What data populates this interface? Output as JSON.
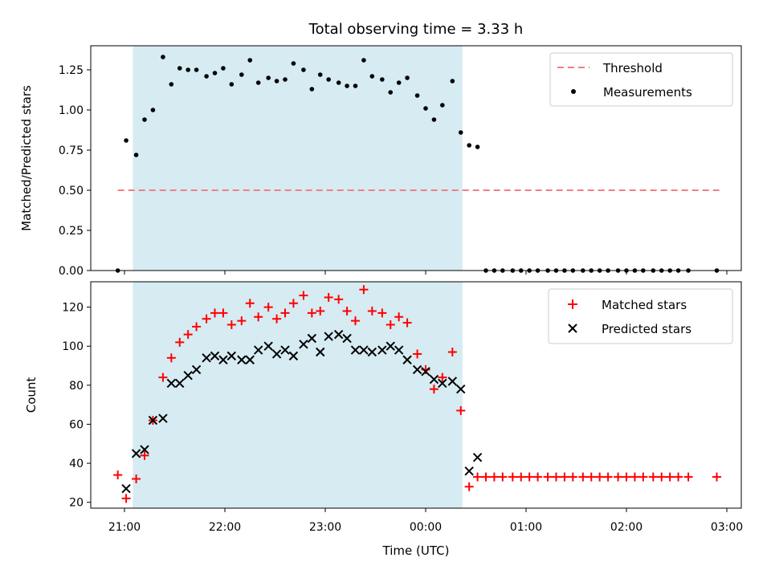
{
  "chart_data": [
    {
      "type": "scatter",
      "title": "Total observing time = 3.33 h",
      "xlabel": "",
      "ylabel": "Matched/Predicted stars",
      "x_unit": "time of night (UTC), decimal hours since 21:00",
      "ylim": [
        0,
        1.4
      ],
      "yticks": [
        0.0,
        0.25,
        0.5,
        0.75,
        1.0,
        1.25
      ],
      "ytick_labels": [
        "0.00",
        "0.25",
        "0.50",
        "0.75",
        "1.00",
        "1.25"
      ],
      "shaded_interval": {
        "start": "21:05",
        "end": "00:22",
        "color": "#add8e6"
      },
      "legend_position": "top-right",
      "threshold": {
        "name": "Threshold",
        "value": 0.5,
        "x_start": "20:56",
        "x_end": "02:56",
        "color": "#f08080",
        "style": "dashed"
      },
      "series": [
        {
          "name": "Measurements",
          "marker": "dot",
          "color": "#000000",
          "points": [
            [
              "20:56",
              0.0
            ],
            [
              "21:01",
              0.81
            ],
            [
              "21:07",
              0.72
            ],
            [
              "21:12",
              0.94
            ],
            [
              "21:17",
              1.0
            ],
            [
              "21:23",
              1.33
            ],
            [
              "21:28",
              1.16
            ],
            [
              "21:33",
              1.26
            ],
            [
              "21:38",
              1.25
            ],
            [
              "21:43",
              1.25
            ],
            [
              "21:49",
              1.21
            ],
            [
              "21:54",
              1.23
            ],
            [
              "21:59",
              1.26
            ],
            [
              "22:04",
              1.16
            ],
            [
              "22:10",
              1.22
            ],
            [
              "22:15",
              1.31
            ],
            [
              "22:20",
              1.17
            ],
            [
              "22:26",
              1.2
            ],
            [
              "22:31",
              1.18
            ],
            [
              "22:36",
              1.19
            ],
            [
              "22:41",
              1.29
            ],
            [
              "22:47",
              1.25
            ],
            [
              "22:52",
              1.13
            ],
            [
              "22:57",
              1.22
            ],
            [
              "23:02",
              1.19
            ],
            [
              "23:08",
              1.17
            ],
            [
              "23:13",
              1.15
            ],
            [
              "23:18",
              1.15
            ],
            [
              "23:23",
              1.31
            ],
            [
              "23:28",
              1.21
            ],
            [
              "23:34",
              1.19
            ],
            [
              "23:39",
              1.11
            ],
            [
              "23:44",
              1.17
            ],
            [
              "23:49",
              1.2
            ],
            [
              "23:55",
              1.09
            ],
            [
              "00:00",
              1.01
            ],
            [
              "00:05",
              0.94
            ],
            [
              "00:10",
              1.03
            ],
            [
              "00:16",
              1.18
            ],
            [
              "00:21",
              0.86
            ],
            [
              "00:26",
              0.78
            ],
            [
              "00:31",
              0.77
            ],
            [
              "00:36",
              0.0
            ],
            [
              "00:41",
              0.0
            ],
            [
              "00:46",
              0.0
            ],
            [
              "00:52",
              0.0
            ],
            [
              "00:57",
              0.0
            ],
            [
              "01:02",
              0.0
            ],
            [
              "01:07",
              0.0
            ],
            [
              "01:13",
              0.0
            ],
            [
              "01:18",
              0.0
            ],
            [
              "01:23",
              0.0
            ],
            [
              "01:28",
              0.0
            ],
            [
              "01:34",
              0.0
            ],
            [
              "01:39",
              0.0
            ],
            [
              "01:44",
              0.0
            ],
            [
              "01:49",
              0.0
            ],
            [
              "01:55",
              0.0
            ],
            [
              "02:00",
              0.0
            ],
            [
              "02:05",
              0.0
            ],
            [
              "02:10",
              0.0
            ],
            [
              "02:16",
              0.0
            ],
            [
              "02:21",
              0.0
            ],
            [
              "02:26",
              0.0
            ],
            [
              "02:31",
              0.0
            ],
            [
              "02:37",
              0.0
            ],
            [
              "02:54",
              0.0
            ]
          ]
        }
      ]
    },
    {
      "type": "scatter",
      "title": "",
      "xlabel": "Time (UTC)",
      "ylabel": "Count",
      "ylim": [
        17,
        133
      ],
      "yticks": [
        20,
        40,
        60,
        80,
        100,
        120
      ],
      "xticks": [
        "21:00",
        "22:00",
        "23:00",
        "00:00",
        "01:00",
        "02:00",
        "03:00"
      ],
      "shaded_interval": {
        "start": "21:05",
        "end": "00:22",
        "color": "#add8e6"
      },
      "legend_position": "top-right",
      "series": [
        {
          "name": "Matched stars",
          "marker": "plus",
          "color": "#ff0000",
          "points": [
            [
              "20:56",
              34
            ],
            [
              "21:01",
              22
            ],
            [
              "21:07",
              32
            ],
            [
              "21:12",
              44
            ],
            [
              "21:17",
              62
            ],
            [
              "21:23",
              84
            ],
            [
              "21:28",
              94
            ],
            [
              "21:33",
              102
            ],
            [
              "21:38",
              106
            ],
            [
              "21:43",
              110
            ],
            [
              "21:49",
              114
            ],
            [
              "21:54",
              117
            ],
            [
              "21:59",
              117
            ],
            [
              "22:04",
              111
            ],
            [
              "22:10",
              113
            ],
            [
              "22:15",
              122
            ],
            [
              "22:20",
              115
            ],
            [
              "22:26",
              120
            ],
            [
              "22:31",
              114
            ],
            [
              "22:36",
              117
            ],
            [
              "22:41",
              122
            ],
            [
              "22:47",
              126
            ],
            [
              "22:52",
              117
            ],
            [
              "22:57",
              118
            ],
            [
              "23:02",
              125
            ],
            [
              "23:08",
              124
            ],
            [
              "23:13",
              118
            ],
            [
              "23:18",
              113
            ],
            [
              "23:23",
              129
            ],
            [
              "23:28",
              118
            ],
            [
              "23:34",
              117
            ],
            [
              "23:39",
              111
            ],
            [
              "23:44",
              115
            ],
            [
              "23:49",
              112
            ],
            [
              "23:55",
              96
            ],
            [
              "00:00",
              88
            ],
            [
              "00:05",
              78
            ],
            [
              "00:10",
              84
            ],
            [
              "00:16",
              97
            ],
            [
              "00:21",
              67
            ],
            [
              "00:26",
              28
            ],
            [
              "00:31",
              33
            ],
            [
              "00:36",
              33
            ],
            [
              "00:41",
              33
            ],
            [
              "00:46",
              33
            ],
            [
              "00:52",
              33
            ],
            [
              "00:57",
              33
            ],
            [
              "01:02",
              33
            ],
            [
              "01:07",
              33
            ],
            [
              "01:13",
              33
            ],
            [
              "01:18",
              33
            ],
            [
              "01:23",
              33
            ],
            [
              "01:28",
              33
            ],
            [
              "01:34",
              33
            ],
            [
              "01:39",
              33
            ],
            [
              "01:44",
              33
            ],
            [
              "01:49",
              33
            ],
            [
              "01:55",
              33
            ],
            [
              "02:00",
              33
            ],
            [
              "02:05",
              33
            ],
            [
              "02:10",
              33
            ],
            [
              "02:16",
              33
            ],
            [
              "02:21",
              33
            ],
            [
              "02:26",
              33
            ],
            [
              "02:31",
              33
            ],
            [
              "02:37",
              33
            ],
            [
              "02:54",
              33
            ]
          ]
        },
        {
          "name": "Predicted stars",
          "marker": "x",
          "color": "#000000",
          "points": [
            [
              "21:01",
              27
            ],
            [
              "21:07",
              45
            ],
            [
              "21:12",
              47
            ],
            [
              "21:17",
              62
            ],
            [
              "21:23",
              63
            ],
            [
              "21:28",
              81
            ],
            [
              "21:33",
              81
            ],
            [
              "21:38",
              85
            ],
            [
              "21:43",
              88
            ],
            [
              "21:49",
              94
            ],
            [
              "21:54",
              95
            ],
            [
              "21:59",
              93
            ],
            [
              "22:04",
              95
            ],
            [
              "22:10",
              93
            ],
            [
              "22:15",
              93
            ],
            [
              "22:20",
              98
            ],
            [
              "22:26",
              100
            ],
            [
              "22:31",
              96
            ],
            [
              "22:36",
              98
            ],
            [
              "22:41",
              95
            ],
            [
              "22:47",
              101
            ],
            [
              "22:52",
              104
            ],
            [
              "22:57",
              97
            ],
            [
              "23:02",
              105
            ],
            [
              "23:08",
              106
            ],
            [
              "23:13",
              104
            ],
            [
              "23:18",
              98
            ],
            [
              "23:23",
              98
            ],
            [
              "23:28",
              97
            ],
            [
              "23:34",
              98
            ],
            [
              "23:39",
              100
            ],
            [
              "23:44",
              98
            ],
            [
              "23:49",
              93
            ],
            [
              "23:55",
              88
            ],
            [
              "00:00",
              87
            ],
            [
              "00:05",
              83
            ],
            [
              "00:10",
              81
            ],
            [
              "00:16",
              82
            ],
            [
              "00:21",
              78
            ],
            [
              "00:26",
              36
            ],
            [
              "00:31",
              43
            ]
          ]
        }
      ]
    }
  ]
}
